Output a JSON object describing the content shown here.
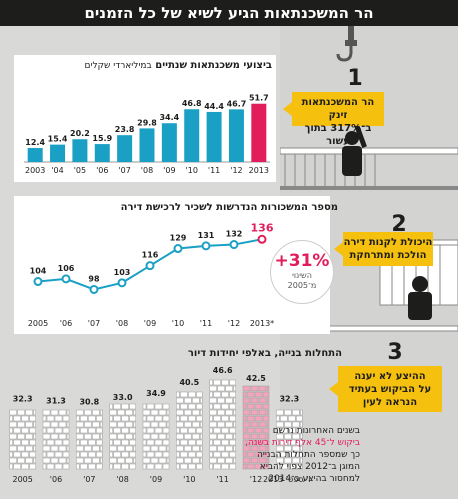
{
  "page": {
    "title": "הר המשכנתאות הגיע לשיא של כל הזמנים"
  },
  "colors": {
    "teal": "#1aa0c4",
    "pink": "#e21d5b",
    "yellow": "#f6c10e",
    "dark": "#1d1d1b",
    "brick": "#f3f3f3",
    "brick_highlight": "#f2a6be"
  },
  "callouts": [
    {
      "number": "1",
      "line1": "הר המשכנתאות זינק",
      "line2": "ב־317% בתוך עשור"
    },
    {
      "number": "2",
      "line1": "היכולת לקנות דירה",
      "line2": "הולכת ומתרחקת"
    },
    {
      "number": "3",
      "line1": "ההיצע לא יענה",
      "line2": "על הביקוש בעתיד",
      "line3": "הנראה לעין"
    }
  ],
  "change": {
    "value": "+31%",
    "label1": "השינוי",
    "label2": "מ־2005"
  },
  "note": {
    "line1": "בשנים האחרונות נרשם",
    "line2": "ביקוש ל־45 אלף דירות בשנה,",
    "line3": "כך שמספר התחלות הבנייה",
    "line4": "המוגן ב־2012 צפוי להביא",
    "line5": "למחסור בהיצע ב־2014"
  },
  "chart_data": [
    {
      "type": "bar",
      "title": "ביצועי משכנתאות שנתיים",
      "subtitle": "במיליארדי שקלים",
      "categories": [
        "2003",
        "'04",
        "'05",
        "'06",
        "'07",
        "'08",
        "'09",
        "'10",
        "'11",
        "'12",
        "2013"
      ],
      "values": [
        12.4,
        15.4,
        20.2,
        15.9,
        23.8,
        29.8,
        34.4,
        46.8,
        44.4,
        46.7,
        51.7
      ],
      "highlight_index": 10,
      "ylim": [
        0,
        55
      ]
    },
    {
      "type": "line",
      "title": "מספר המשכורות הנדרשות לשכיר לרכישת דירה",
      "categories": [
        "2005",
        "'06",
        "'07",
        "'08",
        "'09",
        "'10",
        "'11",
        "'12",
        "2013*"
      ],
      "values": [
        104,
        106,
        98,
        103,
        116,
        129,
        131,
        132,
        136
      ],
      "highlight_index": 8,
      "ylim": [
        90,
        140
      ]
    },
    {
      "type": "bar",
      "title": "התחלות בנייה, באלפי יחידות דיור",
      "categories": [
        "2005",
        "'06",
        "'07",
        "'08",
        "'09",
        "'10",
        "'11",
        "'12",
        "ינו'-ספט' 2013"
      ],
      "values": [
        32.3,
        31.3,
        30.8,
        33.0,
        34.9,
        40.5,
        46.6,
        42.5,
        32.3
      ],
      "highlight_index": 7,
      "ylim": [
        0,
        50
      ]
    }
  ]
}
